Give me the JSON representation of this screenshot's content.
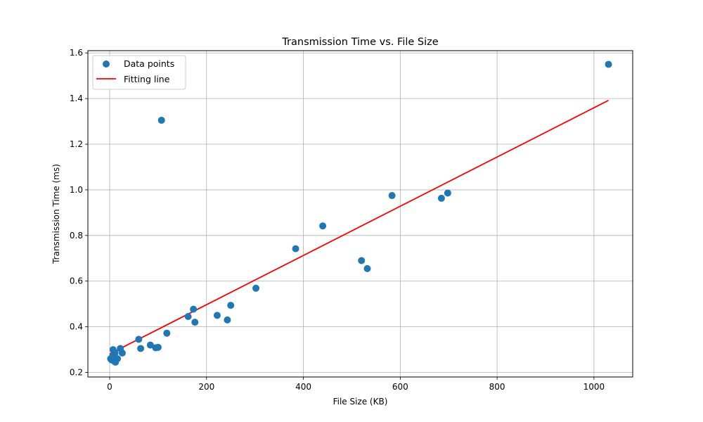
{
  "chart_data": {
    "type": "scatter",
    "title": "Transmission Time vs. File Size",
    "xlabel": "File Size (KB)",
    "ylabel": "Transmission Time (ms)",
    "xlim": [
      -45,
      1080
    ],
    "ylim": [
      0.18,
      1.61
    ],
    "xticks": [
      0,
      200,
      400,
      600,
      800,
      1000
    ],
    "yticks": [
      0.2,
      0.4,
      0.6,
      0.8,
      1.0,
      1.2,
      1.4,
      1.6
    ],
    "grid": true,
    "legend_position": "top-left",
    "legend": [
      {
        "label": "Data points",
        "kind": "marker",
        "color": "#1f77b4"
      },
      {
        "label": "Fitting line",
        "kind": "line",
        "color": "#ff0000"
      }
    ],
    "series": [
      {
        "name": "Data points",
        "kind": "scatter",
        "color": "#1f77b4",
        "points": [
          {
            "x": 2,
            "y": 0.26
          },
          {
            "x": 4,
            "y": 0.255
          },
          {
            "x": 5,
            "y": 0.262
          },
          {
            "x": 6,
            "y": 0.27
          },
          {
            "x": 7,
            "y": 0.3
          },
          {
            "x": 8,
            "y": 0.258
          },
          {
            "x": 9,
            "y": 0.25
          },
          {
            "x": 10,
            "y": 0.265
          },
          {
            "x": 11,
            "y": 0.285
          },
          {
            "x": 12,
            "y": 0.245
          },
          {
            "x": 13,
            "y": 0.26
          },
          {
            "x": 16,
            "y": 0.26
          },
          {
            "x": 22,
            "y": 0.305
          },
          {
            "x": 26,
            "y": 0.285
          },
          {
            "x": 60,
            "y": 0.345
          },
          {
            "x": 64,
            "y": 0.305
          },
          {
            "x": 84,
            "y": 0.32
          },
          {
            "x": 95,
            "y": 0.308
          },
          {
            "x": 100,
            "y": 0.31
          },
          {
            "x": 107,
            "y": 1.305
          },
          {
            "x": 118,
            "y": 0.372
          },
          {
            "x": 162,
            "y": 0.445
          },
          {
            "x": 173,
            "y": 0.477
          },
          {
            "x": 176,
            "y": 0.42
          },
          {
            "x": 222,
            "y": 0.45
          },
          {
            "x": 243,
            "y": 0.43
          },
          {
            "x": 250,
            "y": 0.494
          },
          {
            "x": 302,
            "y": 0.569
          },
          {
            "x": 384,
            "y": 0.742
          },
          {
            "x": 440,
            "y": 0.842
          },
          {
            "x": 520,
            "y": 0.69
          },
          {
            "x": 532,
            "y": 0.655
          },
          {
            "x": 583,
            "y": 0.975
          },
          {
            "x": 685,
            "y": 0.963
          },
          {
            "x": 698,
            "y": 0.986
          },
          {
            "x": 1030,
            "y": 1.55
          }
        ]
      },
      {
        "name": "Fitting line",
        "kind": "line",
        "color": "#ff0000",
        "points": [
          {
            "x": 0,
            "y": 0.281
          },
          {
            "x": 1030,
            "y": 1.392
          }
        ]
      }
    ]
  }
}
